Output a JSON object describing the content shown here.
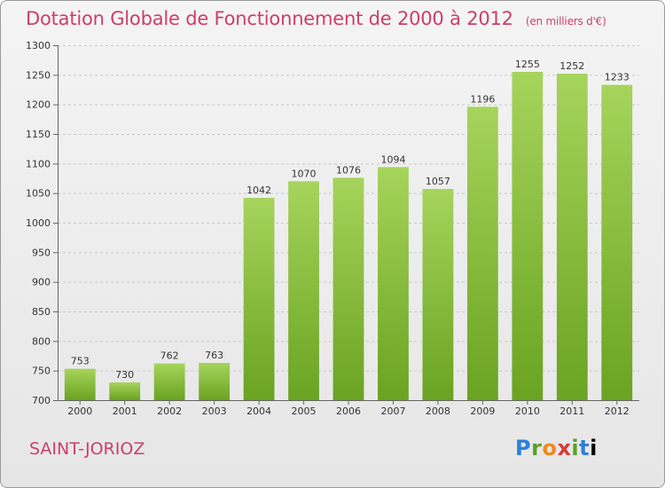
{
  "title": "Dotation Globale de Fonctionnement de 2000 à 2012",
  "unit": "(en milliers d'€)",
  "commune": "SAINT-JORIOZ",
  "logo": [
    "P",
    "r",
    "o",
    "x",
    "i",
    "t",
    "i"
  ],
  "chart_data": {
    "type": "bar",
    "categories": [
      "2000",
      "2001",
      "2002",
      "2003",
      "2004",
      "2005",
      "2006",
      "2007",
      "2008",
      "2009",
      "2010",
      "2011",
      "2012"
    ],
    "values": [
      753,
      730,
      762,
      763,
      1042,
      1070,
      1076,
      1094,
      1057,
      1196,
      1255,
      1252,
      1233
    ],
    "ylim": [
      700,
      1300
    ],
    "yticks": [
      700,
      750,
      800,
      850,
      900,
      950,
      1000,
      1050,
      1100,
      1150,
      1200,
      1250,
      1300
    ],
    "grid": true,
    "bar_color_top": "#a6d45c",
    "bar_color_bottom": "#6aa321"
  }
}
